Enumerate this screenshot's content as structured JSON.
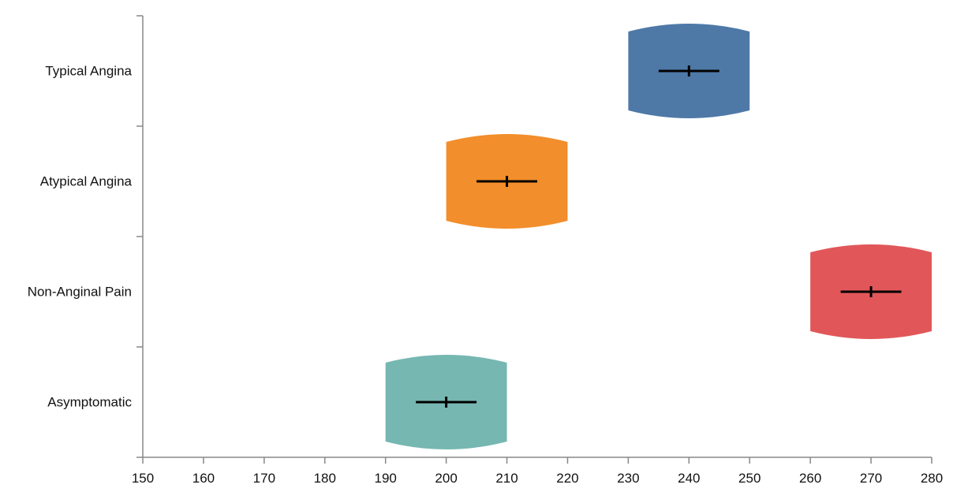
{
  "chart_data": {
    "type": "range",
    "title": "",
    "xlabel": "",
    "ylabel": "",
    "xlim": [
      150,
      280
    ],
    "x_ticks": [
      150,
      160,
      170,
      180,
      190,
      200,
      210,
      220,
      230,
      240,
      250,
      260,
      270,
      280
    ],
    "categories": [
      "Typical Angina",
      "Atypical Angina",
      "Non-Anginal Pain",
      "Asymptomatic"
    ],
    "series": [
      {
        "category": "Typical Angina",
        "range": [
          230,
          250
        ],
        "center": 240,
        "error": [
          235,
          245
        ],
        "color": "#4e79a7"
      },
      {
        "category": "Atypical Angina",
        "range": [
          200,
          220
        ],
        "center": 210,
        "error": [
          205,
          215
        ],
        "color": "#f28e2b"
      },
      {
        "category": "Non-Anginal Pain",
        "range": [
          260,
          280
        ],
        "center": 270,
        "error": [
          265,
          275
        ],
        "color": "#e15759"
      },
      {
        "category": "Asymptomatic",
        "range": [
          190,
          210
        ],
        "center": 200,
        "error": [
          195,
          205
        ],
        "color": "#76b7b2"
      }
    ],
    "grid": false,
    "legend": "none"
  }
}
